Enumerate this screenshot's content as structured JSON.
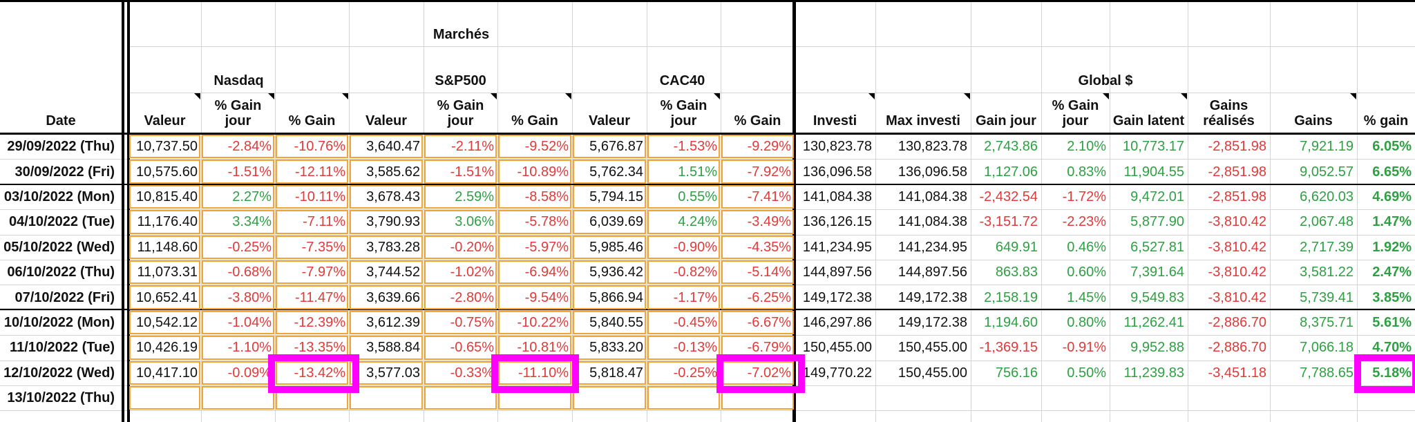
{
  "colors": {
    "positive": "#2ea043",
    "negative": "#e03a3a",
    "neutral": "#111111",
    "highlight_orange": "#f4a433",
    "highlight_magenta": "#ff00ff"
  },
  "headers": {
    "date": "Date",
    "marches": "Marchés",
    "global": "Global $",
    "nasdaq": "Nasdaq",
    "sp500": "S&P500",
    "cac40": "CAC40",
    "columns": [
      "Valeur",
      "% Gain\njour",
      "% Gain",
      "Valeur",
      "% Gain\njour",
      "% Gain",
      "Valeur",
      "% Gain\njour",
      "% Gain",
      "Investi",
      "Max investi",
      "Gain jour",
      "% Gain\njour",
      "Gain latent",
      "Gains\nréalisés",
      "Gains",
      "% gain"
    ]
  },
  "rows": [
    {
      "date": "29/09/2022 (Thu)",
      "cells": [
        "10,737.50",
        "-2.84%",
        "-10.76%",
        "3,640.47",
        "-2.11%",
        "-9.52%",
        "5,676.87",
        "-1.53%",
        "-9.29%",
        "130,823.78",
        "130,823.78",
        "2,743.86",
        "2.10%",
        "10,773.17",
        "-2,851.98",
        "7,921.19",
        "6.05%"
      ]
    },
    {
      "date": "30/09/2022 (Fri)",
      "cells": [
        "10,575.60",
        "-1.51%",
        "-12.11%",
        "3,585.62",
        "-1.51%",
        "-10.89%",
        "5,762.34",
        "1.51%",
        "-7.92%",
        "136,096.58",
        "136,096.58",
        "1,127.06",
        "0.83%",
        "11,904.55",
        "-2,851.98",
        "9,052.57",
        "6.65%"
      ]
    },
    {
      "date": "03/10/2022 (Mon)",
      "cells": [
        "10,815.40",
        "2.27%",
        "-10.11%",
        "3,678.43",
        "2.59%",
        "-8.58%",
        "5,794.15",
        "0.55%",
        "-7.41%",
        "141,084.38",
        "141,084.38",
        "-2,432.54",
        "-1.72%",
        "9,472.01",
        "-2,851.98",
        "6,620.03",
        "4.69%"
      ]
    },
    {
      "date": "04/10/2022 (Tue)",
      "cells": [
        "11,176.40",
        "3.34%",
        "-7.11%",
        "3,790.93",
        "3.06%",
        "-5.78%",
        "6,039.69",
        "4.24%",
        "-3.49%",
        "136,126.15",
        "141,084.38",
        "-3,151.72",
        "-2.23%",
        "5,877.90",
        "-3,810.42",
        "2,067.48",
        "1.47%"
      ]
    },
    {
      "date": "05/10/2022 (Wed)",
      "cells": [
        "11,148.60",
        "-0.25%",
        "-7.35%",
        "3,783.28",
        "-0.20%",
        "-5.97%",
        "5,985.46",
        "-0.90%",
        "-4.35%",
        "141,234.95",
        "141,234.95",
        "649.91",
        "0.46%",
        "6,527.81",
        "-3,810.42",
        "2,717.39",
        "1.92%"
      ]
    },
    {
      "date": "06/10/2022 (Thu)",
      "cells": [
        "11,073.31",
        "-0.68%",
        "-7.97%",
        "3,744.52",
        "-1.02%",
        "-6.94%",
        "5,936.42",
        "-0.82%",
        "-5.14%",
        "144,897.56",
        "144,897.56",
        "863.83",
        "0.60%",
        "7,391.64",
        "-3,810.42",
        "3,581.22",
        "2.47%"
      ]
    },
    {
      "date": "07/10/2022 (Fri)",
      "cells": [
        "10,652.41",
        "-3.80%",
        "-11.47%",
        "3,639.66",
        "-2.80%",
        "-9.54%",
        "5,866.94",
        "-1.17%",
        "-6.25%",
        "149,172.38",
        "149,172.38",
        "2,158.19",
        "1.45%",
        "9,549.83",
        "-3,810.42",
        "5,739.41",
        "3.85%"
      ]
    },
    {
      "date": "10/10/2022 (Mon)",
      "cells": [
        "10,542.12",
        "-1.04%",
        "-12.39%",
        "3,612.39",
        "-0.75%",
        "-10.22%",
        "5,840.55",
        "-0.45%",
        "-6.67%",
        "146,297.86",
        "149,172.38",
        "1,194.60",
        "0.80%",
        "11,262.41",
        "-2,886.70",
        "8,375.71",
        "5.61%"
      ]
    },
    {
      "date": "11/10/2022 (Tue)",
      "cells": [
        "10,426.19",
        "-1.10%",
        "-13.35%",
        "3,588.84",
        "-0.65%",
        "-10.81%",
        "5,833.20",
        "-0.13%",
        "-6.79%",
        "150,455.00",
        "150,455.00",
        "-1,369.15",
        "-0.91%",
        "9,952.88",
        "-2,886.70",
        "7,066.18",
        "4.70%"
      ]
    },
    {
      "date": "12/10/2022 (Wed)",
      "cells": [
        "10,417.10",
        "-0.09%",
        "-13.42%",
        "3,577.03",
        "-0.33%",
        "-11.10%",
        "5,818.47",
        "-0.25%",
        "-7.02%",
        "149,770.22",
        "150,455.00",
        "756.16",
        "0.50%",
        "11,239.83",
        "-3,451.18",
        "7,788.65",
        "5.18%"
      ]
    },
    {
      "date": "13/10/2022 (Thu)",
      "cells": [
        "",
        "",
        "",
        "",
        "",
        "",
        "",
        "",
        "",
        "",
        "",
        "",
        "",
        "",
        "",
        "",
        ""
      ]
    }
  ]
}
